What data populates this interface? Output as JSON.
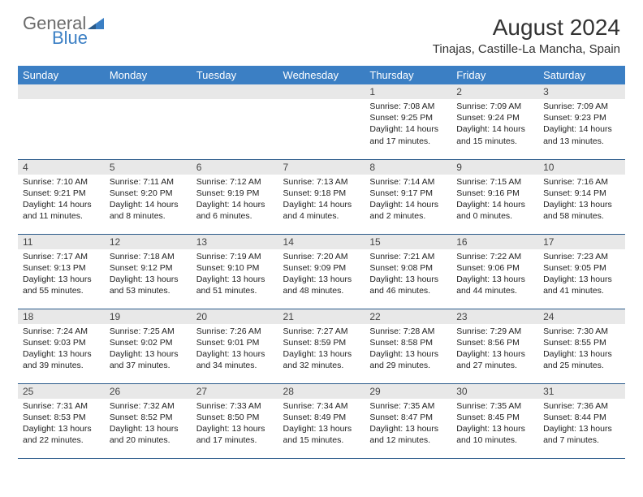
{
  "logo": {
    "text1": "General",
    "text2": "Blue"
  },
  "title": "August 2024",
  "location": "Tinajas, Castille-La Mancha, Spain",
  "colors": {
    "header_bg": "#3b7fc4",
    "header_text": "#ffffff",
    "daynum_bg": "#e8e8e8",
    "border": "#2a5a8a",
    "logo_gray": "#6b6b6b",
    "logo_blue": "#3b7fc4"
  },
  "weekdays": [
    "Sunday",
    "Monday",
    "Tuesday",
    "Wednesday",
    "Thursday",
    "Friday",
    "Saturday"
  ],
  "weeks": [
    [
      null,
      null,
      null,
      null,
      {
        "n": "1",
        "sr": "7:08 AM",
        "ss": "9:25 PM",
        "dl": "14 hours and 17 minutes."
      },
      {
        "n": "2",
        "sr": "7:09 AM",
        "ss": "9:24 PM",
        "dl": "14 hours and 15 minutes."
      },
      {
        "n": "3",
        "sr": "7:09 AM",
        "ss": "9:23 PM",
        "dl": "14 hours and 13 minutes."
      }
    ],
    [
      {
        "n": "4",
        "sr": "7:10 AM",
        "ss": "9:21 PM",
        "dl": "14 hours and 11 minutes."
      },
      {
        "n": "5",
        "sr": "7:11 AM",
        "ss": "9:20 PM",
        "dl": "14 hours and 8 minutes."
      },
      {
        "n": "6",
        "sr": "7:12 AM",
        "ss": "9:19 PM",
        "dl": "14 hours and 6 minutes."
      },
      {
        "n": "7",
        "sr": "7:13 AM",
        "ss": "9:18 PM",
        "dl": "14 hours and 4 minutes."
      },
      {
        "n": "8",
        "sr": "7:14 AM",
        "ss": "9:17 PM",
        "dl": "14 hours and 2 minutes."
      },
      {
        "n": "9",
        "sr": "7:15 AM",
        "ss": "9:16 PM",
        "dl": "14 hours and 0 minutes."
      },
      {
        "n": "10",
        "sr": "7:16 AM",
        "ss": "9:14 PM",
        "dl": "13 hours and 58 minutes."
      }
    ],
    [
      {
        "n": "11",
        "sr": "7:17 AM",
        "ss": "9:13 PM",
        "dl": "13 hours and 55 minutes."
      },
      {
        "n": "12",
        "sr": "7:18 AM",
        "ss": "9:12 PM",
        "dl": "13 hours and 53 minutes."
      },
      {
        "n": "13",
        "sr": "7:19 AM",
        "ss": "9:10 PM",
        "dl": "13 hours and 51 minutes."
      },
      {
        "n": "14",
        "sr": "7:20 AM",
        "ss": "9:09 PM",
        "dl": "13 hours and 48 minutes."
      },
      {
        "n": "15",
        "sr": "7:21 AM",
        "ss": "9:08 PM",
        "dl": "13 hours and 46 minutes."
      },
      {
        "n": "16",
        "sr": "7:22 AM",
        "ss": "9:06 PM",
        "dl": "13 hours and 44 minutes."
      },
      {
        "n": "17",
        "sr": "7:23 AM",
        "ss": "9:05 PM",
        "dl": "13 hours and 41 minutes."
      }
    ],
    [
      {
        "n": "18",
        "sr": "7:24 AM",
        "ss": "9:03 PM",
        "dl": "13 hours and 39 minutes."
      },
      {
        "n": "19",
        "sr": "7:25 AM",
        "ss": "9:02 PM",
        "dl": "13 hours and 37 minutes."
      },
      {
        "n": "20",
        "sr": "7:26 AM",
        "ss": "9:01 PM",
        "dl": "13 hours and 34 minutes."
      },
      {
        "n": "21",
        "sr": "7:27 AM",
        "ss": "8:59 PM",
        "dl": "13 hours and 32 minutes."
      },
      {
        "n": "22",
        "sr": "7:28 AM",
        "ss": "8:58 PM",
        "dl": "13 hours and 29 minutes."
      },
      {
        "n": "23",
        "sr": "7:29 AM",
        "ss": "8:56 PM",
        "dl": "13 hours and 27 minutes."
      },
      {
        "n": "24",
        "sr": "7:30 AM",
        "ss": "8:55 PM",
        "dl": "13 hours and 25 minutes."
      }
    ],
    [
      {
        "n": "25",
        "sr": "7:31 AM",
        "ss": "8:53 PM",
        "dl": "13 hours and 22 minutes."
      },
      {
        "n": "26",
        "sr": "7:32 AM",
        "ss": "8:52 PM",
        "dl": "13 hours and 20 minutes."
      },
      {
        "n": "27",
        "sr": "7:33 AM",
        "ss": "8:50 PM",
        "dl": "13 hours and 17 minutes."
      },
      {
        "n": "28",
        "sr": "7:34 AM",
        "ss": "8:49 PM",
        "dl": "13 hours and 15 minutes."
      },
      {
        "n": "29",
        "sr": "7:35 AM",
        "ss": "8:47 PM",
        "dl": "13 hours and 12 minutes."
      },
      {
        "n": "30",
        "sr": "7:35 AM",
        "ss": "8:45 PM",
        "dl": "13 hours and 10 minutes."
      },
      {
        "n": "31",
        "sr": "7:36 AM",
        "ss": "8:44 PM",
        "dl": "13 hours and 7 minutes."
      }
    ]
  ],
  "labels": {
    "sunrise": "Sunrise:",
    "sunset": "Sunset:",
    "daylight": "Daylight:"
  }
}
